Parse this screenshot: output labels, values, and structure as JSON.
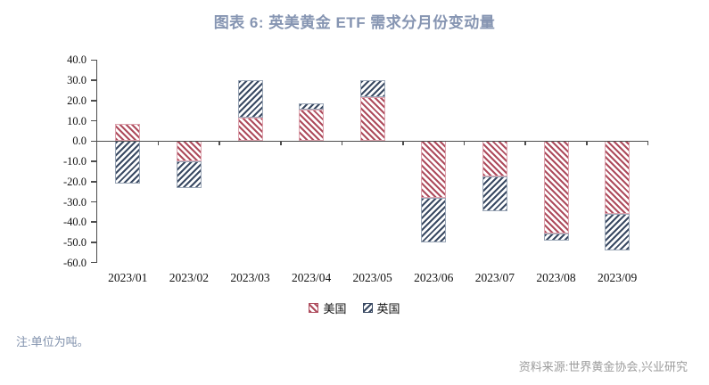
{
  "title": "图表 6: 英美黄金 ETF 需求分月份变动量",
  "note": "注:单位为吨。",
  "source": "资料来源:世界黄金协会,兴业研究",
  "chart_data": {
    "type": "bar",
    "stacked": true,
    "title": "图表 6: 英美黄金 ETF 需求分月份变动量",
    "unit": "吨",
    "categories": [
      "2023/01",
      "2023/02",
      "2023/03",
      "2023/04",
      "2023/05",
      "2023/06",
      "2023/07",
      "2023/08",
      "2023/09"
    ],
    "series": [
      {
        "name": "美国",
        "color": "#AE4C5D",
        "border_color": "#DDA3AE",
        "hatch": "backslash-diagonal",
        "values": [
          8.7,
          -10.0,
          11.5,
          15.5,
          21.5,
          -28.0,
          -17.4,
          -45.5,
          -36.0
        ]
      },
      {
        "name": "英国",
        "color": "#3A4A63",
        "border_color": "#9AA6B6",
        "hatch": "slash-diagonal",
        "values": [
          -21.0,
          -13.0,
          18.5,
          3.0,
          8.5,
          -22.0,
          -17.1,
          -3.5,
          -18.0
        ]
      }
    ],
    "ylim": [
      -60,
      40
    ],
    "ytick_labels": [
      "40.0",
      "30.0",
      "20.0",
      "10.0",
      "0.0",
      "-10.0",
      "-20.0",
      "-30.0",
      "-40.0",
      "-50.0",
      "-60.0"
    ],
    "xlabel": "",
    "ylabel": "",
    "grid": false,
    "legend_position": "bottom",
    "axis_color": "#4d4d4d"
  }
}
